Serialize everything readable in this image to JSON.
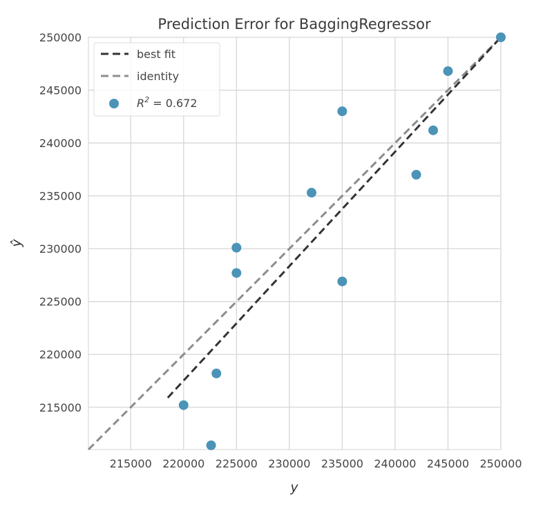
{
  "chart_data": {
    "type": "scatter",
    "title": "Prediction Error for BaggingRegressor",
    "xlabel": "y",
    "ylabel": "ŷ",
    "xlim": [
      211000,
      250000
    ],
    "ylim": [
      211000,
      250000
    ],
    "x_ticks": [
      "215000",
      "220000",
      "225000",
      "230000",
      "235000",
      "240000",
      "245000",
      "250000"
    ],
    "y_ticks": [
      "215000",
      "220000",
      "225000",
      "230000",
      "235000",
      "240000",
      "245000",
      "250000"
    ],
    "grid": true,
    "legend_position": "top-left",
    "points": [
      {
        "x": 220000,
        "y": 215200
      },
      {
        "x": 222600,
        "y": 211400
      },
      {
        "x": 223100,
        "y": 218200
      },
      {
        "x": 225000,
        "y": 227700
      },
      {
        "x": 225000,
        "y": 230100
      },
      {
        "x": 232100,
        "y": 235300
      },
      {
        "x": 235000,
        "y": 243000
      },
      {
        "x": 235000,
        "y": 226900
      },
      {
        "x": 242000,
        "y": 237000
      },
      {
        "x": 243600,
        "y": 241200
      },
      {
        "x": 245000,
        "y": 246800
      },
      {
        "x": 250000,
        "y": 250000
      }
    ],
    "best_fit": {
      "x": [
        218500,
        250000
      ],
      "y": [
        215900,
        250000
      ]
    },
    "identity": {
      "x": [
        211000,
        250000
      ],
      "y": [
        211000,
        250000
      ]
    },
    "legend": [
      {
        "label": "best fit",
        "style": "dashed",
        "color": "#333333"
      },
      {
        "label": "identity",
        "style": "dashed",
        "color": "#8c8c8c"
      },
      {
        "label": "R² = 0.672",
        "style": "marker",
        "color": "#4b94b8"
      }
    ],
    "r2_label": "R",
    "r2_sup": "2",
    "r2_value": " = 0.672",
    "colors": {
      "points": "#4b94b8",
      "best_fit": "#333333",
      "identity": "#8c8c8c",
      "grid": "#d6d6d6"
    }
  }
}
